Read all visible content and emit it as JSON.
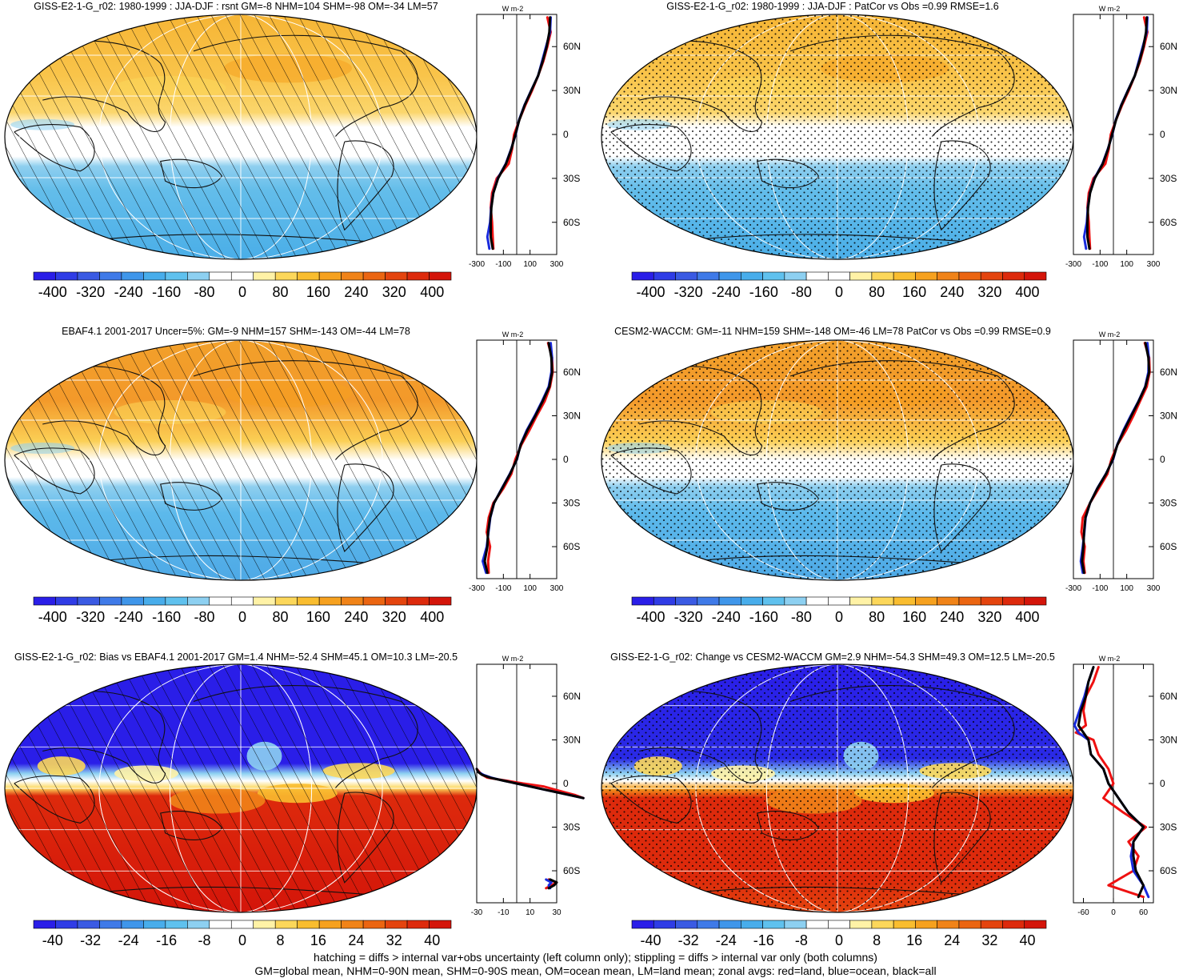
{
  "figure": {
    "footer_line1": "hatching = diffs > internal var+obs uncertainty (left column only); stippling = diffs > internal var only (both columns)",
    "footer_line2": "GM=global mean, NHM=0-90N mean, SHM=0-90S mean, OM=ocean mean, LM=land mean; zonal avgs: red=land, blue=ocean, black=all"
  },
  "colors": {
    "land": "#ee1111",
    "ocean": "#1a2bdd",
    "all": "#000000",
    "colorbar_stops": [
      "#2a1ee8",
      "#2f3ce6",
      "#3a5ae3",
      "#3f7ae8",
      "#3f96ea",
      "#48adeb",
      "#5fc1ee",
      "#8dd0f1",
      "#ffffff",
      "#ffffff",
      "#fff2a6",
      "#fcd75a",
      "#f9bd2f",
      "#f6a11f",
      "#f08318",
      "#eb6511",
      "#e4440e",
      "#dd2a0c",
      "#d4150a"
    ]
  },
  "chart_data": [
    {
      "type": "heatmap",
      "title": "GISS-E2-1-G_r02: 1980-1999 : JJA-DJF : rsnt GM=-8 NHM=104 SHM=-98 OM=-34 LM=57",
      "pattern": "seasonal",
      "overlay": "hatch",
      "colorbar_ticks": [
        "-400",
        "-320",
        "-240",
        "-160",
        "-80",
        "0",
        "80",
        "160",
        "240",
        "320",
        "400"
      ],
      "colorbar_range": [
        -440,
        440
      ],
      "profile": {
        "units": "W m-2",
        "xlim": [
          -300,
          300
        ],
        "x_ticks": [
          "-300",
          "-100",
          "100",
          "300"
        ],
        "y_ticks": [
          "60N",
          "30N",
          "0",
          "30S",
          "60S"
        ],
        "ylim": [
          -82,
          82
        ],
        "lat": [
          80,
          70,
          60,
          50,
          40,
          30,
          20,
          10,
          0,
          -10,
          -20,
          -30,
          -40,
          -50,
          -60,
          -70,
          -78
        ],
        "all": [
          250,
          245,
          225,
          195,
          160,
          110,
          60,
          20,
          -10,
          -40,
          -80,
          -140,
          -175,
          -190,
          -195,
          -195,
          -180
        ],
        "land": [
          230,
          255,
          230,
          200,
          160,
          115,
          65,
          20,
          -20,
          -35,
          -60,
          -150,
          -185,
          -195,
          -185,
          -180,
          -175
        ],
        "ocean": [
          255,
          250,
          220,
          190,
          160,
          108,
          58,
          18,
          -8,
          -42,
          -82,
          -142,
          -176,
          -192,
          -200,
          -220,
          -205
        ]
      }
    },
    {
      "type": "heatmap",
      "title": "GISS-E2-1-G_r02: 1980-1999 : JJA-DJF : PatCor vs Obs =0.99 RMSE=1.6",
      "pattern": "seasonal",
      "overlay": "stipple",
      "colorbar_ticks": [
        "-400",
        "-320",
        "-240",
        "-160",
        "-80",
        "0",
        "80",
        "160",
        "240",
        "320",
        "400"
      ],
      "colorbar_range": [
        -440,
        440
      ],
      "profile": {
        "units": "W m-2",
        "xlim": [
          -300,
          300
        ],
        "x_ticks": [
          "-300",
          "-100",
          "100",
          "300"
        ],
        "y_ticks": [
          "60N",
          "30N",
          "0",
          "30S",
          "60S"
        ],
        "ylim": [
          -82,
          82
        ],
        "lat": [
          80,
          70,
          60,
          50,
          40,
          30,
          20,
          10,
          0,
          -10,
          -20,
          -30,
          -40,
          -50,
          -60,
          -70,
          -78
        ],
        "all": [
          250,
          245,
          225,
          195,
          160,
          110,
          60,
          20,
          -10,
          -40,
          -80,
          -140,
          -175,
          -190,
          -195,
          -195,
          -180
        ],
        "land": [
          230,
          255,
          230,
          200,
          160,
          115,
          65,
          20,
          -20,
          -35,
          -60,
          -150,
          -185,
          -195,
          -185,
          -180,
          -175
        ],
        "ocean": [
          255,
          250,
          220,
          190,
          160,
          108,
          58,
          18,
          -8,
          -42,
          -82,
          -142,
          -176,
          -192,
          -200,
          -220,
          -205
        ]
      }
    },
    {
      "type": "heatmap",
      "title": "EBAF4.1 2001-2017 Uncer=5%: GM=-9 NHM=157 SHM=-143 OM=-44 LM=78",
      "pattern": "seasonal2",
      "overlay": "hatch",
      "colorbar_ticks": [
        "-400",
        "-320",
        "-240",
        "-160",
        "-80",
        "0",
        "80",
        "160",
        "240",
        "320",
        "400"
      ],
      "colorbar_range": [
        -440,
        440
      ],
      "profile": {
        "units": "W m-2",
        "xlim": [
          -300,
          300
        ],
        "x_ticks": [
          "-300",
          "-100",
          "100",
          "300"
        ],
        "y_ticks": [
          "60N",
          "30N",
          "0",
          "30S",
          "60S"
        ],
        "ylim": [
          -82,
          82
        ],
        "lat": [
          80,
          70,
          60,
          50,
          40,
          30,
          20,
          10,
          0,
          -10,
          -20,
          -30,
          -40,
          -50,
          -60,
          -70,
          -78
        ],
        "all": [
          240,
          260,
          265,
          245,
          195,
          140,
          80,
          30,
          0,
          -50,
          -110,
          -170,
          -200,
          -215,
          -220,
          -240,
          -220
        ],
        "land": [
          235,
          265,
          270,
          250,
          210,
          150,
          95,
          35,
          -10,
          -40,
          -100,
          -175,
          -210,
          -225,
          -200,
          -215,
          -210
        ],
        "ocean": [
          255,
          265,
          260,
          240,
          190,
          135,
          75,
          28,
          2,
          -52,
          -112,
          -170,
          -198,
          -212,
          -225,
          -255,
          -230
        ]
      }
    },
    {
      "type": "heatmap",
      "title": "CESM2-WACCM: GM=-11 NHM=159 SHM=-148 OM=-46 LM=78 PatCor vs Obs =0.99 RMSE=0.9",
      "pattern": "seasonal2",
      "overlay": "stipple",
      "colorbar_ticks": [
        "-400",
        "-320",
        "-240",
        "-160",
        "-80",
        "0",
        "80",
        "160",
        "240",
        "320",
        "400"
      ],
      "colorbar_range": [
        -440,
        440
      ],
      "profile": {
        "units": "W m-2",
        "xlim": [
          -300,
          300
        ],
        "x_ticks": [
          "-300",
          "-100",
          "100",
          "300"
        ],
        "y_ticks": [
          "60N",
          "30N",
          "0",
          "30S",
          "60S"
        ],
        "ylim": [
          -82,
          82
        ],
        "lat": [
          80,
          70,
          60,
          50,
          40,
          30,
          20,
          10,
          0,
          -10,
          -20,
          -30,
          -40,
          -50,
          -60,
          -70,
          -78
        ],
        "all": [
          240,
          262,
          268,
          240,
          190,
          135,
          80,
          30,
          -5,
          -55,
          -120,
          -175,
          -210,
          -220,
          -225,
          -235,
          -220
        ],
        "land": [
          235,
          268,
          272,
          250,
          200,
          150,
          95,
          30,
          -15,
          -45,
          -110,
          -175,
          -230,
          -240,
          -215,
          -225,
          -215
        ],
        "ocean": [
          255,
          265,
          262,
          238,
          188,
          130,
          75,
          28,
          -2,
          -57,
          -122,
          -175,
          -208,
          -218,
          -230,
          -245,
          -230
        ]
      }
    },
    {
      "type": "heatmap",
      "title": "GISS-E2-1-G_r02: Bias vs EBAF4.1 2001-2017 GM=1.4 NHM=-52.4 SHM=45.1 OM=10.3 LM=-20.5",
      "pattern": "bias",
      "overlay": "hatch",
      "colorbar_ticks": [
        "-40",
        "-32",
        "-24",
        "-16",
        "-8",
        "0",
        "8",
        "16",
        "24",
        "32",
        "40"
      ],
      "colorbar_range": [
        -44,
        44
      ],
      "profile": {
        "units": "W m-2",
        "xlim": [
          -30,
          30
        ],
        "x_ticks": [
          "-30",
          "-10",
          "10",
          "30"
        ],
        "y_ticks": [
          "60N",
          "30N",
          "0",
          "30S",
          "60S"
        ],
        "ylim": [
          -82,
          82
        ],
        "lat": [
          10,
          8,
          6,
          4,
          2,
          0,
          -2,
          -4,
          -6,
          -8,
          -10
        ],
        "all": [
          -30,
          -29,
          -26,
          -20,
          -10,
          0,
          10,
          20,
          30,
          40,
          50
        ],
        "land": [
          -30,
          -28,
          -26,
          -22,
          -8,
          5,
          20,
          28,
          36,
          44,
          50
        ],
        "ocean": [
          -30,
          -29,
          -25,
          -19,
          -10,
          0,
          10,
          20,
          30,
          40,
          50
        ],
        "lat2": [
          -66,
          -68,
          -70,
          -72
        ],
        "all2": [
          25,
          30,
          28,
          24
        ],
        "land2": [
          24,
          30,
          26,
          22
        ],
        "ocean2": [
          22,
          26,
          24,
          25
        ]
      }
    },
    {
      "type": "heatmap",
      "title": "GISS-E2-1-G_r02: Change vs CESM2-WACCM GM=2.9 NHM=-54.3 SHM=49.3 OM=12.5 LM=-20.5",
      "pattern": "bias2",
      "overlay": "stipple",
      "colorbar_ticks": [
        "-40",
        "-32",
        "-24",
        "-16",
        "-8",
        "0",
        "8",
        "16",
        "24",
        "32",
        "40"
      ],
      "colorbar_range": [
        -44,
        44
      ],
      "profile": {
        "units": "W m-2",
        "xlim": [
          -80,
          80
        ],
        "x_ticks": [
          "-60",
          "0",
          "60"
        ],
        "y_ticks": [
          "60N",
          "30N",
          "0",
          "30S",
          "60S"
        ],
        "ylim": [
          -82,
          82
        ],
        "lat": [
          80,
          70,
          60,
          50,
          40,
          35,
          30,
          20,
          10,
          0,
          -10,
          -20,
          -30,
          -40,
          -50,
          -60,
          -70,
          -78
        ],
        "all": [
          -40,
          -50,
          -55,
          -65,
          -70,
          -60,
          -50,
          -45,
          -20,
          -10,
          10,
          30,
          60,
          40,
          40,
          45,
          60,
          50
        ],
        "land": [
          -30,
          -40,
          -55,
          -60,
          -55,
          -75,
          -40,
          -30,
          -10,
          0,
          -20,
          20,
          65,
          30,
          50,
          40,
          -10,
          60
        ],
        "ocean": [
          -40,
          -50,
          -58,
          -68,
          -78,
          -70,
          -50,
          -45,
          -20,
          -10,
          10,
          30,
          60,
          40,
          35,
          40,
          60,
          70
        ]
      }
    }
  ]
}
